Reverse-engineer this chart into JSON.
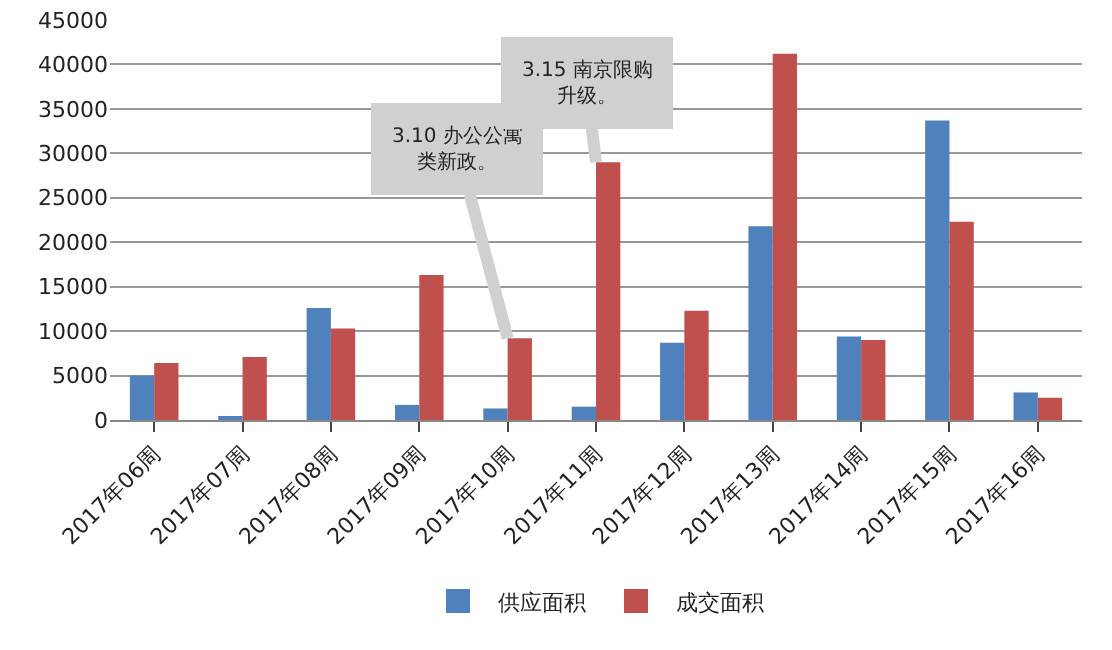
{
  "chart_data": {
    "type": "bar",
    "categories": [
      "2017年06周",
      "2017年07周",
      "2017年08周",
      "2017年09周",
      "2017年10周",
      "2017年11周",
      "2017年12周",
      "2017年13周",
      "2017年14周",
      "2017年15周",
      "2017年16周"
    ],
    "series": [
      {
        "name": "供应面积",
        "color": "#4f81bd",
        "values": [
          5000,
          300,
          12600,
          1700,
          1300,
          1500,
          8700,
          21800,
          9400,
          33700,
          3100
        ]
      },
      {
        "name": "成交面积",
        "color": "#c0504d",
        "values": [
          6400,
          7100,
          10300,
          16300,
          9200,
          29000,
          12300,
          41200,
          9000,
          22300,
          2500
        ]
      }
    ],
    "ylim": [
      0,
      45000
    ],
    "yticks": [
      0,
      5000,
      10000,
      15000,
      20000,
      25000,
      30000,
      35000,
      40000,
      45000
    ],
    "grid": "y",
    "legend": "bottom",
    "annotations": [
      {
        "text": "3.10 办公公寓类新政。",
        "x": "2017年10周",
        "y": 9200
      },
      {
        "text": "3.15 南京限购升级。",
        "x": "2017年11周",
        "y": 29000
      }
    ]
  }
}
